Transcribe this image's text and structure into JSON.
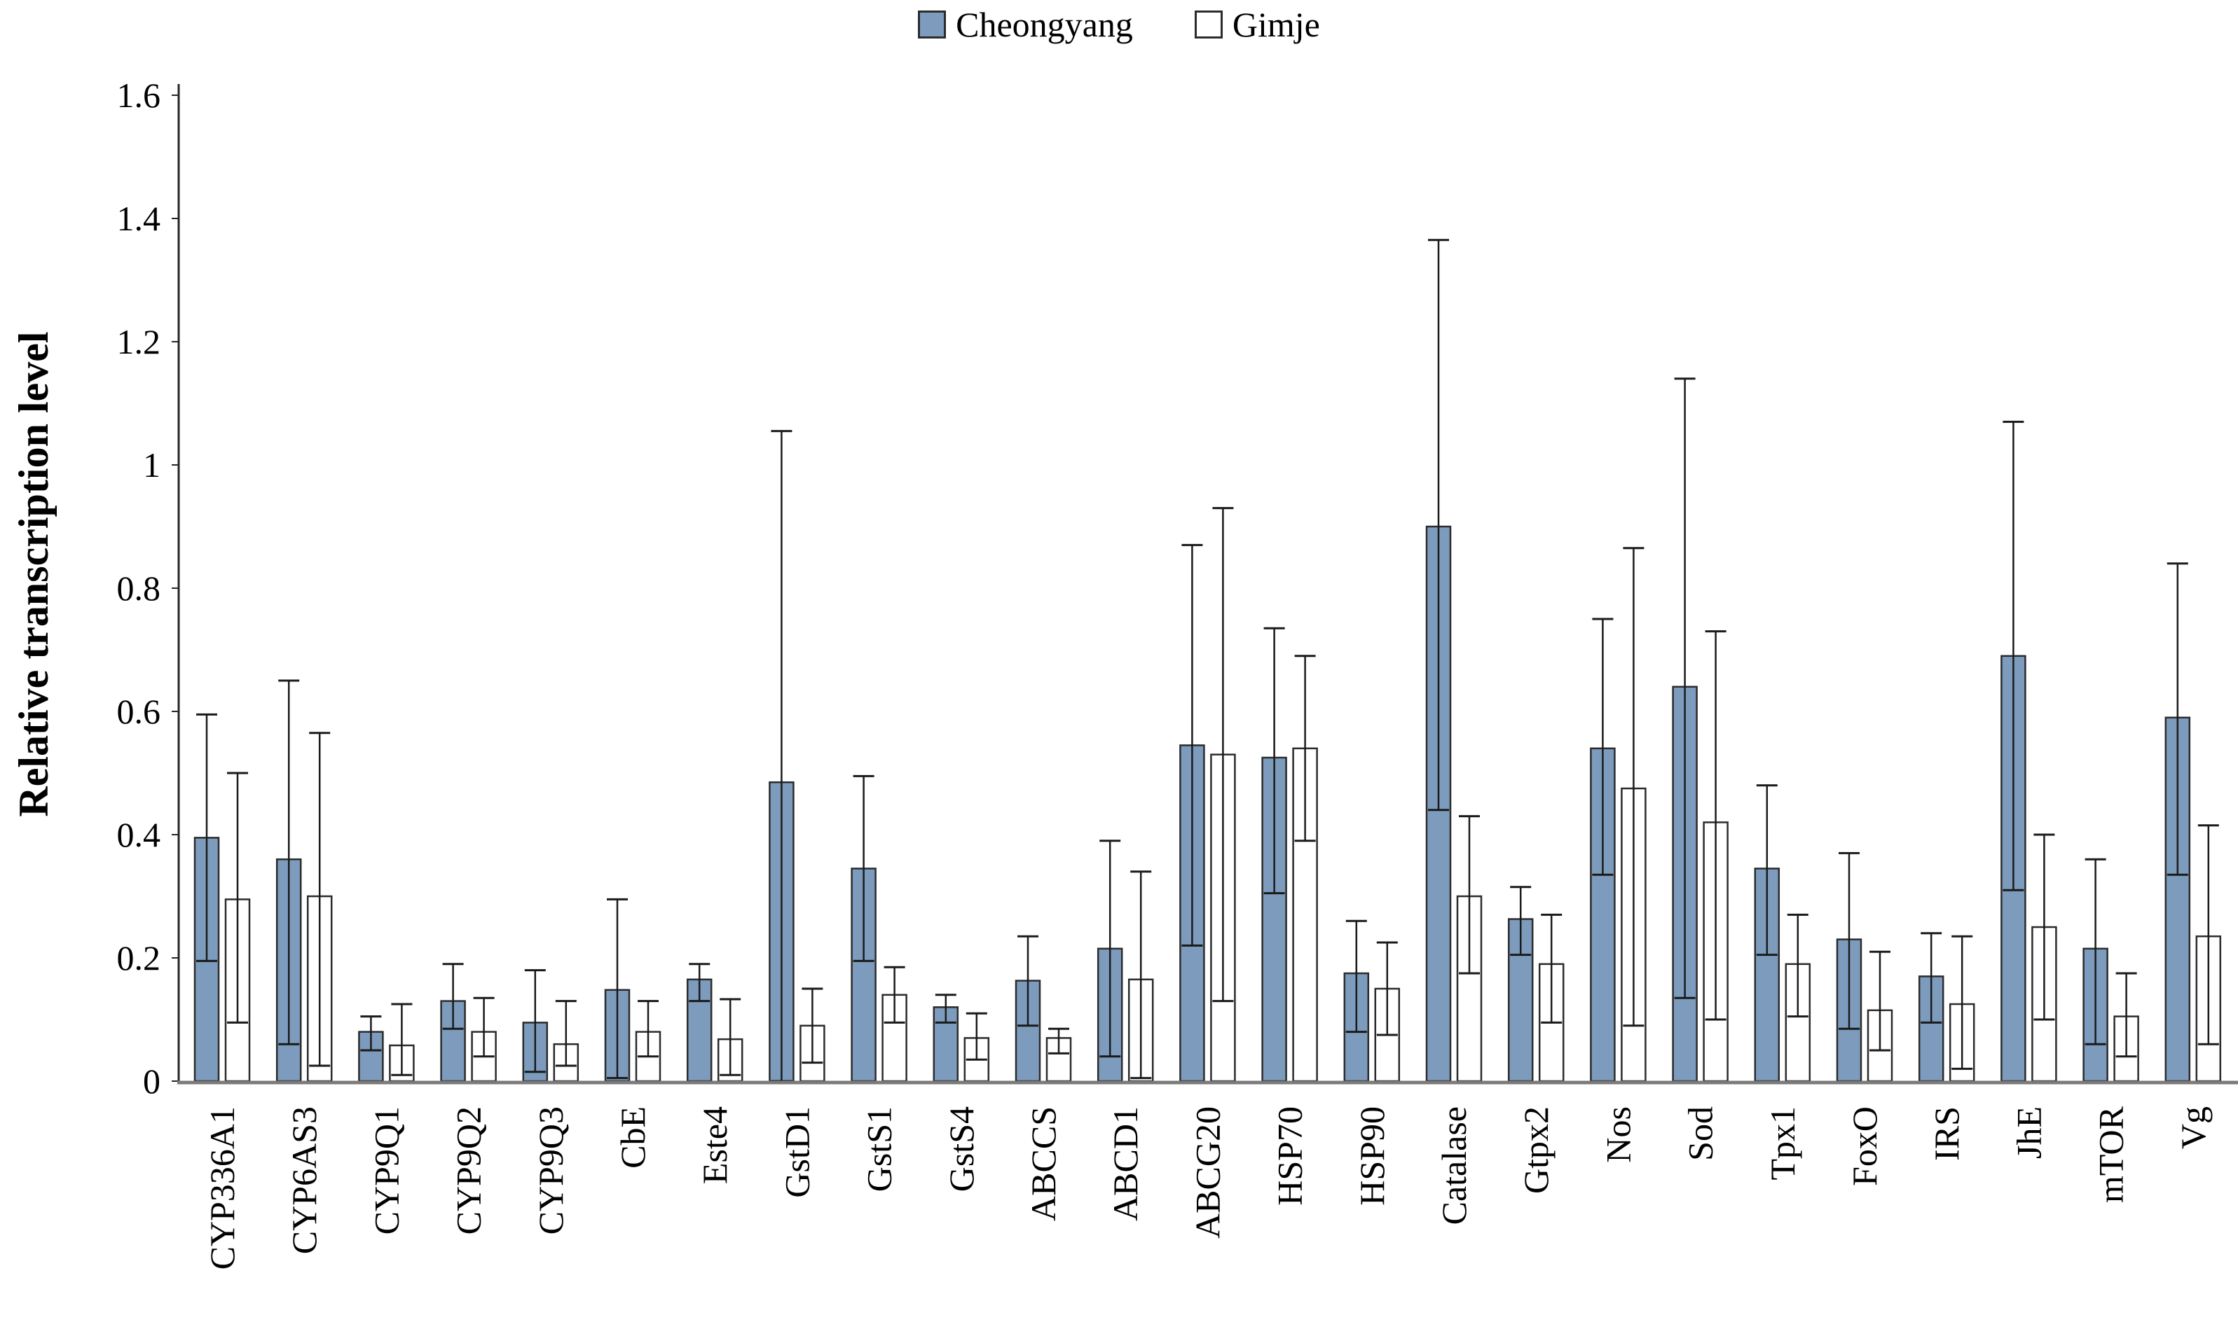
{
  "chart_data": {
    "type": "bar",
    "title": "",
    "ylabel": "Relative transcription level",
    "xlabel": "",
    "ylim": [
      0,
      1.6
    ],
    "ytick_labels": [
      "0",
      "0.2",
      "0.4",
      "0.6",
      "0.8",
      "1",
      "1.2",
      "1.4",
      "1.6"
    ],
    "grid": false,
    "legend_position": "top-center",
    "error_bars": true,
    "categories": [
      "CYP336A1",
      "CYP6AS3",
      "CYP9Q1",
      "CYP9Q2",
      "CYP9Q3",
      "CbE",
      "Este4",
      "GstD1",
      "GstS1",
      "GstS4",
      "ABCCS",
      "ABCD1",
      "ABCG20",
      "HSP70",
      "HSP90",
      "Catalase",
      "Gtpx2",
      "Nos",
      "Sod",
      "Tpx1",
      "FoxO",
      "IRS",
      "JhE",
      "mTOR",
      "Vg"
    ],
    "series": [
      {
        "name": "Cheongyang",
        "fill": "#7d9cbd",
        "stroke": "#2b2b2b",
        "values": [
          0.395,
          0.36,
          0.08,
          0.13,
          0.095,
          0.148,
          0.165,
          0.485,
          0.345,
          0.12,
          0.163,
          0.215,
          0.545,
          0.525,
          0.175,
          0.9,
          0.263,
          0.54,
          0.64,
          0.345,
          0.23,
          0.17,
          0.69,
          0.215,
          0.59
        ],
        "whisker_top": [
          0.595,
          0.65,
          0.105,
          0.19,
          0.18,
          0.295,
          0.19,
          1.055,
          0.495,
          0.14,
          0.235,
          0.39,
          0.87,
          0.735,
          0.26,
          1.365,
          0.315,
          0.75,
          1.14,
          0.48,
          0.37,
          0.24,
          1.07,
          0.36,
          0.84
        ],
        "whisker_bottom": [
          0.195,
          0.06,
          0.05,
          0.085,
          0.015,
          0.005,
          0.13,
          0.0,
          0.195,
          0.095,
          0.09,
          0.04,
          0.22,
          0.305,
          0.08,
          0.44,
          0.205,
          0.335,
          0.135,
          0.205,
          0.085,
          0.095,
          0.31,
          0.06,
          0.335
        ]
      },
      {
        "name": "Gimje",
        "fill": "#ffffff",
        "stroke": "#2b2b2b",
        "values": [
          0.295,
          0.3,
          0.058,
          0.08,
          0.06,
          0.08,
          0.068,
          0.09,
          0.14,
          0.07,
          0.07,
          0.165,
          0.53,
          0.54,
          0.15,
          0.3,
          0.19,
          0.475,
          0.42,
          0.19,
          0.115,
          0.125,
          0.25,
          0.105,
          0.235
        ],
        "whisker_top": [
          0.5,
          0.565,
          0.125,
          0.135,
          0.13,
          0.13,
          0.133,
          0.15,
          0.185,
          0.11,
          0.085,
          0.34,
          0.93,
          0.69,
          0.225,
          0.43,
          0.27,
          0.865,
          0.73,
          0.27,
          0.21,
          0.235,
          0.4,
          0.175,
          0.415
        ],
        "whisker_bottom": [
          0.095,
          0.025,
          0.01,
          0.04,
          0.025,
          0.04,
          0.01,
          0.03,
          0.095,
          0.035,
          0.045,
          0.005,
          0.13,
          0.39,
          0.075,
          0.175,
          0.095,
          0.09,
          0.1,
          0.105,
          0.05,
          0.02,
          0.1,
          0.04,
          0.06
        ]
      }
    ]
  },
  "colors": {
    "background": "#ffffff",
    "axis": "#262626",
    "baseline": "#7a7a7a",
    "whisker": "#1a1a1a",
    "text": "#000000"
  }
}
